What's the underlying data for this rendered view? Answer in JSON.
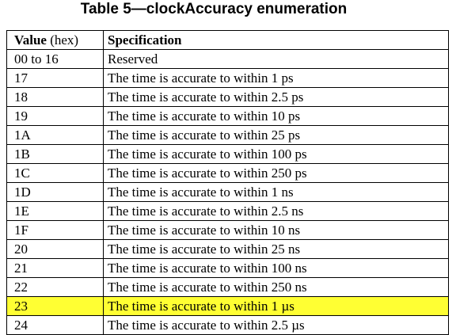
{
  "title": "Table 5—clockAccuracy enumeration",
  "table": {
    "headers": {
      "value_bold": "Value",
      "value_rest": " (hex)",
      "spec": "Specification"
    },
    "rows": [
      {
        "value": "00 to 16",
        "spec": "Reserved"
      },
      {
        "value": "17",
        "spec": "The time is accurate to within 1 ps"
      },
      {
        "value": "18",
        "spec": "The time is accurate to within 2.5 ps"
      },
      {
        "value": "19",
        "spec": "The time is accurate to within 10 ps"
      },
      {
        "value": "1A",
        "spec": "The time is accurate to within 25 ps"
      },
      {
        "value": "1B",
        "spec": "The time is accurate to within 100 ps"
      },
      {
        "value": "1C",
        "spec": "The time is accurate to within 250 ps"
      },
      {
        "value": "1D",
        "spec": "The time is accurate to within 1 ns"
      },
      {
        "value": "1E",
        "spec": "The time is accurate to within 2.5 ns"
      },
      {
        "value": "1F",
        "spec": "The time is accurate to within 10 ns"
      },
      {
        "value": "20",
        "spec": "The time is accurate to within 25 ns"
      },
      {
        "value": "21",
        "spec": "The time is accurate to within 100 ns"
      },
      {
        "value": "22",
        "spec": "The time is accurate to within 250 ns"
      },
      {
        "value": "23",
        "spec": "The time is accurate to within 1 µs"
      },
      {
        "value": "24",
        "spec": "The time is accurate to within 2.5 µs"
      }
    ],
    "highlighted_value": "23",
    "highlight_color": "#ffff33"
  }
}
